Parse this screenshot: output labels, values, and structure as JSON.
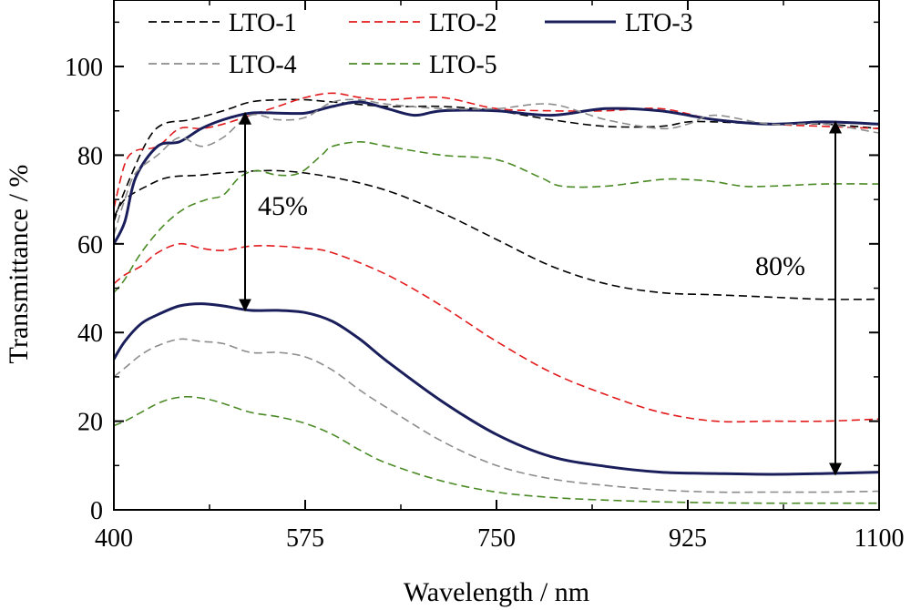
{
  "chart_data": {
    "type": "line",
    "xlabel": "Wavelength / nm",
    "ylabel": "Transmittance / %",
    "xlim": [
      400,
      1100
    ],
    "ylim": [
      0,
      115
    ],
    "xticks": [
      400,
      575,
      750,
      925,
      1100
    ],
    "yticks": [
      0,
      20,
      40,
      60,
      80,
      100
    ],
    "grid": false,
    "legend_position": "top",
    "series": [
      {
        "name": "LTO-1",
        "color": "#000000",
        "dash": "dashed",
        "state": "high",
        "points": [
          [
            400,
            65
          ],
          [
            410,
            72
          ],
          [
            430,
            83
          ],
          [
            445,
            87
          ],
          [
            470,
            88
          ],
          [
            500,
            90
          ],
          [
            525,
            92
          ],
          [
            550,
            92.5
          ],
          [
            575,
            92.5
          ],
          [
            600,
            92
          ],
          [
            650,
            91
          ],
          [
            700,
            91
          ],
          [
            750,
            90
          ],
          [
            800,
            88
          ],
          [
            850,
            86.5
          ],
          [
            900,
            86.5
          ],
          [
            925,
            87.5
          ],
          [
            950,
            87.5
          ],
          [
            1000,
            87
          ],
          [
            1050,
            87
          ],
          [
            1100,
            86
          ]
        ]
      },
      {
        "name": "LTO-1",
        "color": "#000000",
        "dash": "dashed",
        "state": "low",
        "points": [
          [
            400,
            66
          ],
          [
            410,
            70
          ],
          [
            430,
            73
          ],
          [
            450,
            75
          ],
          [
            480,
            75.5
          ],
          [
            500,
            76
          ],
          [
            550,
            76.5
          ],
          [
            600,
            75
          ],
          [
            650,
            72
          ],
          [
            700,
            67
          ],
          [
            750,
            61
          ],
          [
            800,
            55
          ],
          [
            850,
            51
          ],
          [
            900,
            49
          ],
          [
            950,
            48.5
          ],
          [
            1000,
            48
          ],
          [
            1050,
            47.5
          ],
          [
            1100,
            47.5
          ]
        ]
      },
      {
        "name": "LTO-2",
        "color": "#e31a1c",
        "dash": "dashed",
        "state": "high",
        "points": [
          [
            400,
            68
          ],
          [
            410,
            78
          ],
          [
            420,
            81
          ],
          [
            440,
            82
          ],
          [
            460,
            86
          ],
          [
            480,
            86
          ],
          [
            500,
            87
          ],
          [
            525,
            89
          ],
          [
            550,
            91
          ],
          [
            575,
            93
          ],
          [
            600,
            94
          ],
          [
            625,
            93
          ],
          [
            650,
            92.5
          ],
          [
            700,
            93
          ],
          [
            750,
            90.5
          ],
          [
            800,
            90
          ],
          [
            850,
            90
          ],
          [
            900,
            90.5
          ],
          [
            950,
            88
          ],
          [
            1000,
            87
          ],
          [
            1050,
            86.5
          ],
          [
            1100,
            86
          ]
        ]
      },
      {
        "name": "LTO-2",
        "color": "#e31a1c",
        "dash": "dashed",
        "state": "low",
        "points": [
          [
            400,
            51
          ],
          [
            410,
            53
          ],
          [
            425,
            55
          ],
          [
            440,
            58
          ],
          [
            460,
            60
          ],
          [
            480,
            59
          ],
          [
            500,
            58.5
          ],
          [
            525,
            59.5
          ],
          [
            550,
            59.5
          ],
          [
            575,
            59
          ],
          [
            600,
            58
          ],
          [
            650,
            53
          ],
          [
            700,
            46
          ],
          [
            750,
            38
          ],
          [
            800,
            31
          ],
          [
            850,
            26
          ],
          [
            900,
            22
          ],
          [
            950,
            20
          ],
          [
            1000,
            20
          ],
          [
            1050,
            20
          ],
          [
            1100,
            20.5
          ]
        ]
      },
      {
        "name": "LTO-3",
        "color": "#1a1f5c",
        "dash": "solid",
        "state": "high",
        "points": [
          [
            400,
            60
          ],
          [
            410,
            65
          ],
          [
            420,
            75
          ],
          [
            440,
            82
          ],
          [
            460,
            83
          ],
          [
            480,
            86
          ],
          [
            500,
            88
          ],
          [
            525,
            89.5
          ],
          [
            550,
            89.5
          ],
          [
            575,
            89.5
          ],
          [
            600,
            91
          ],
          [
            625,
            92
          ],
          [
            650,
            90.5
          ],
          [
            675,
            89
          ],
          [
            700,
            90
          ],
          [
            750,
            90
          ],
          [
            800,
            89
          ],
          [
            850,
            90.5
          ],
          [
            900,
            90
          ],
          [
            950,
            88
          ],
          [
            1000,
            87
          ],
          [
            1050,
            87.5
          ],
          [
            1100,
            87
          ]
        ]
      },
      {
        "name": "LTO-3",
        "color": "#1a1f5c",
        "dash": "solid",
        "state": "low",
        "points": [
          [
            400,
            34
          ],
          [
            410,
            38
          ],
          [
            425,
            42
          ],
          [
            440,
            44
          ],
          [
            460,
            46
          ],
          [
            480,
            46.5
          ],
          [
            500,
            46
          ],
          [
            525,
            45
          ],
          [
            550,
            45
          ],
          [
            575,
            44.5
          ],
          [
            600,
            42.5
          ],
          [
            625,
            38.5
          ],
          [
            650,
            33.5
          ],
          [
            700,
            24.5
          ],
          [
            750,
            17
          ],
          [
            800,
            12
          ],
          [
            850,
            9.8
          ],
          [
            900,
            8.5
          ],
          [
            950,
            8.2
          ],
          [
            1000,
            8
          ],
          [
            1050,
            8.2
          ],
          [
            1100,
            8.5
          ]
        ]
      },
      {
        "name": "LTO-4",
        "color": "#8c8c8c",
        "dash": "dashed",
        "state": "high",
        "points": [
          [
            400,
            62
          ],
          [
            410,
            70
          ],
          [
            420,
            76
          ],
          [
            440,
            80
          ],
          [
            460,
            84
          ],
          [
            480,
            82
          ],
          [
            500,
            84
          ],
          [
            525,
            89
          ],
          [
            550,
            88
          ],
          [
            575,
            88.5
          ],
          [
            600,
            92
          ],
          [
            625,
            92.5
          ],
          [
            650,
            91.5
          ],
          [
            700,
            90.5
          ],
          [
            750,
            90.5
          ],
          [
            800,
            91.5
          ],
          [
            850,
            88
          ],
          [
            900,
            86
          ],
          [
            925,
            87
          ],
          [
            950,
            89
          ],
          [
            1000,
            87
          ],
          [
            1050,
            87
          ],
          [
            1100,
            85
          ]
        ]
      },
      {
        "name": "LTO-4",
        "color": "#8c8c8c",
        "dash": "dashed",
        "state": "low",
        "points": [
          [
            400,
            30
          ],
          [
            410,
            32
          ],
          [
            425,
            35
          ],
          [
            440,
            37
          ],
          [
            460,
            38.5
          ],
          [
            480,
            38
          ],
          [
            500,
            37.5
          ],
          [
            525,
            35.5
          ],
          [
            550,
            35.5
          ],
          [
            575,
            34.5
          ],
          [
            600,
            31.5
          ],
          [
            625,
            27
          ],
          [
            650,
            23
          ],
          [
            700,
            15.5
          ],
          [
            750,
            10
          ],
          [
            800,
            7
          ],
          [
            850,
            5.5
          ],
          [
            900,
            4.5
          ],
          [
            950,
            4
          ],
          [
            1000,
            4
          ],
          [
            1050,
            4
          ],
          [
            1100,
            4.2
          ]
        ]
      },
      {
        "name": "LTO-5",
        "color": "#4a8a24",
        "dash": "dashed",
        "state": "high",
        "points": [
          [
            400,
            49
          ],
          [
            410,
            52
          ],
          [
            425,
            58
          ],
          [
            445,
            64
          ],
          [
            465,
            68
          ],
          [
            485,
            70
          ],
          [
            500,
            71
          ],
          [
            515,
            75
          ],
          [
            530,
            76.5
          ],
          [
            550,
            75.5
          ],
          [
            570,
            76
          ],
          [
            590,
            80
          ],
          [
            600,
            82
          ],
          [
            625,
            83
          ],
          [
            650,
            82
          ],
          [
            700,
            80
          ],
          [
            750,
            79
          ],
          [
            790,
            75
          ],
          [
            810,
            73
          ],
          [
            850,
            73
          ],
          [
            900,
            74.5
          ],
          [
            925,
            74.5
          ],
          [
            950,
            74
          ],
          [
            975,
            73
          ],
          [
            1000,
            73
          ],
          [
            1050,
            73.5
          ],
          [
            1100,
            73.5
          ]
        ]
      },
      {
        "name": "LTO-5",
        "color": "#4a8a24",
        "dash": "dashed",
        "state": "low",
        "points": [
          [
            400,
            19
          ],
          [
            410,
            20
          ],
          [
            425,
            22
          ],
          [
            445,
            24.5
          ],
          [
            465,
            25.5
          ],
          [
            485,
            25
          ],
          [
            500,
            24
          ],
          [
            525,
            22
          ],
          [
            550,
            21
          ],
          [
            575,
            19.5
          ],
          [
            600,
            17
          ],
          [
            625,
            13.5
          ],
          [
            650,
            10.5
          ],
          [
            700,
            6.5
          ],
          [
            750,
            4
          ],
          [
            800,
            2.8
          ],
          [
            850,
            2.2
          ],
          [
            900,
            1.8
          ],
          [
            950,
            1.6
          ],
          [
            1000,
            1.5
          ],
          [
            1050,
            1.5
          ],
          [
            1100,
            1.5
          ]
        ]
      }
    ],
    "legend": [
      {
        "label": "LTO-1",
        "color": "#000000",
        "dash": "dashed"
      },
      {
        "label": "LTO-2",
        "color": "#e31a1c",
        "dash": "dashed"
      },
      {
        "label": "LTO-3",
        "color": "#1a1f5c",
        "dash": "solid"
      },
      {
        "label": "LTO-4",
        "color": "#8c8c8c",
        "dash": "dashed"
      },
      {
        "label": "LTO-5",
        "color": "#4a8a24",
        "dash": "dashed"
      }
    ],
    "annotations": [
      {
        "text": "45%",
        "x_data": 520,
        "y_from": 89.5,
        "y_to": 45
      },
      {
        "text": "80%",
        "x_data": 1060,
        "y_from": 87.5,
        "y_to": 8
      }
    ]
  }
}
